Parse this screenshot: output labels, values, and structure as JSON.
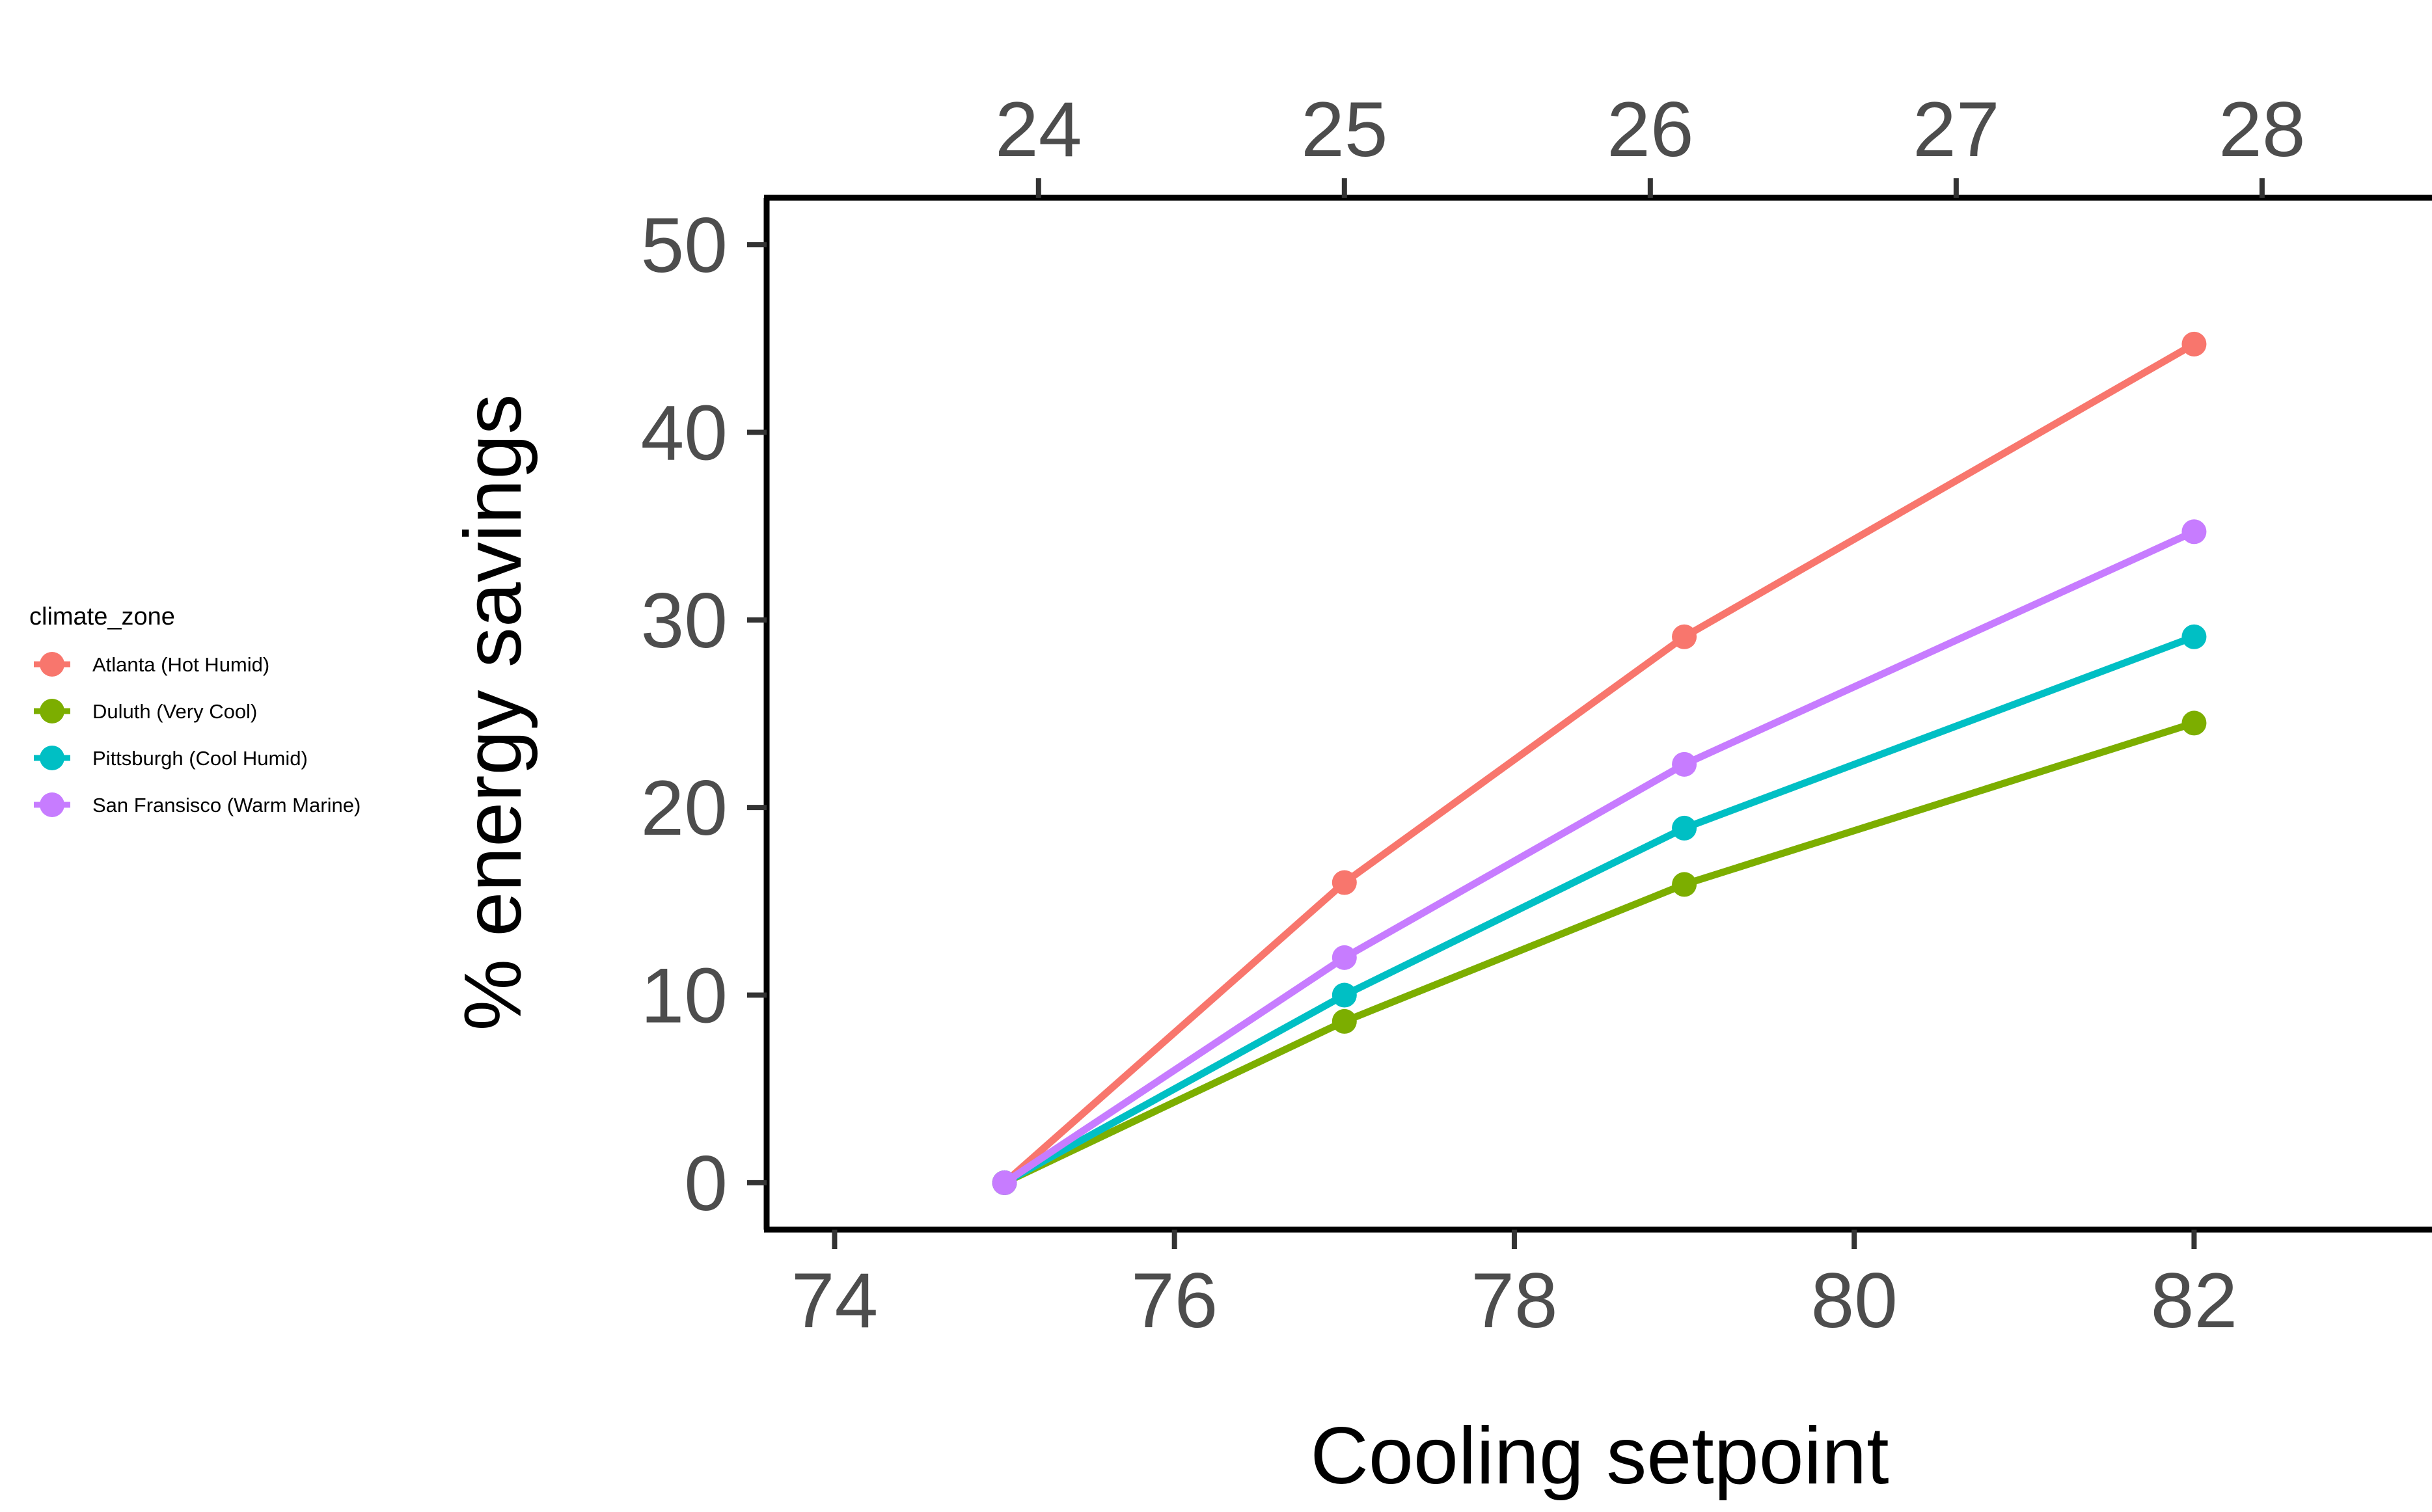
{
  "chart_data": {
    "type": "line",
    "title": "",
    "xlabel": "Cooling setpoint",
    "ylabel": "% energy savings",
    "x": [
      75,
      77,
      79,
      82
    ],
    "xlim": [
      73.6,
      83.4
    ],
    "ylim": [
      -2.5,
      52.5
    ],
    "x_ticks": [
      74,
      76,
      78,
      80,
      82
    ],
    "y_ticks": [
      0,
      10,
      20,
      30,
      40,
      50
    ],
    "secondary_x_axis": {
      "position": "top",
      "ticks": [
        24,
        25,
        26,
        27,
        28
      ],
      "unit": "Celsius (x_top = (x − 32) × 5/9)"
    },
    "grid": false,
    "legend": {
      "title": "climate_zone",
      "placement": "left"
    },
    "series": [
      {
        "name": "Atlanta (Hot Humid)",
        "color": "#F8766D",
        "values": [
          0,
          16.0,
          29.1,
          44.7
        ]
      },
      {
        "name": "Duluth (Very Cool)",
        "color": "#7CAE00",
        "values": [
          0,
          8.6,
          15.9,
          24.5
        ]
      },
      {
        "name": "Pittsburgh (Cool Humid)",
        "color": "#00BFC4",
        "values": [
          0,
          10.0,
          18.9,
          29.1
        ]
      },
      {
        "name": "San Fransisco (Warm Marine)",
        "color": "#C77CFF",
        "values": [
          0,
          12.0,
          22.3,
          34.7
        ]
      }
    ]
  }
}
